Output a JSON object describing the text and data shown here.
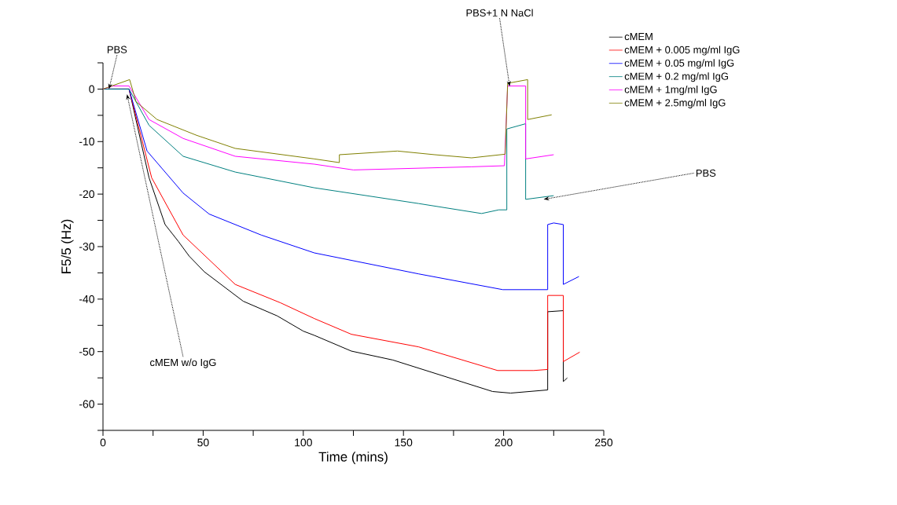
{
  "chart_data": {
    "type": "line",
    "xlabel": "Time (mins)",
    "ylabel": "F5/5 (Hz)",
    "xlim": [
      0,
      250
    ],
    "ylim": [
      -65,
      5
    ],
    "xticks": [
      0,
      {
        "value": 25,
        "label": null
      },
      50,
      {
        "value": 75,
        "label": null
      },
      100,
      {
        "value": 125,
        "label": null
      },
      150,
      {
        "value": 175,
        "label": null
      },
      200,
      {
        "value": 225,
        "label": null
      },
      250
    ],
    "yticks": [
      {
        "value": -65,
        "label": null
      },
      -60,
      {
        "value": -55,
        "label": null
      },
      -50,
      {
        "value": -45,
        "label": null
      },
      -40,
      {
        "value": -35,
        "label": null
      },
      -30,
      {
        "value": -25,
        "label": null
      },
      -20,
      {
        "value": -15,
        "label": null
      },
      -10,
      {
        "value": -5,
        "label": null
      },
      0,
      {
        "value": 5,
        "label": null
      }
    ],
    "legend": "top right",
    "grid": false,
    "marker": "none",
    "line_style": "solid",
    "series": [
      {
        "name": "cMEM",
        "color": "#000000",
        "x": [
          0,
          13,
          23,
          31,
          37.6,
          43,
          50.6,
          70,
          87,
          100,
          105.5,
          124,
          144.7,
          194.5,
          203.5,
          222,
          222,
          229.8,
          229.8,
          231.8
        ],
        "values": [
          0,
          0,
          -16.9,
          -25.8,
          -29,
          -31.8,
          -34.8,
          -40.4,
          -43.2,
          -46.1,
          -46.9,
          -49.9,
          -51.6,
          -57.6,
          -57.9,
          -57.3,
          -42.4,
          -42.2,
          -55.7,
          -55
        ]
      },
      {
        "name": "cMEM + 0.005 mg/ml IgG",
        "color": "#ff0000",
        "x": [
          0,
          13,
          24.3,
          40,
          66,
          88.6,
          105.5,
          124,
          157.6,
          197,
          215,
          222,
          222,
          229.8,
          229.8,
          238
        ],
        "values": [
          0,
          0,
          -16.9,
          -27.8,
          -37.2,
          -40.7,
          -43.7,
          -46.7,
          -49.1,
          -53.6,
          -53.6,
          -53.4,
          -39.3,
          -39.3,
          -51.9,
          -50.1
        ]
      },
      {
        "name": "cMEM + 0.05 mg/ml IgG",
        "color": "#0000ff",
        "x": [
          0,
          13,
          22,
          40,
          53,
          79,
          105.5,
          157.6,
          199.6,
          222,
          222,
          225,
          229.8,
          229.8,
          237.6
        ],
        "values": [
          0,
          0,
          -11.8,
          -19.8,
          -23.8,
          -27.8,
          -31.2,
          -35.2,
          -38.2,
          -38.2,
          -25.8,
          -25.5,
          -25.8,
          -37.2,
          -35.7
        ]
      },
      {
        "name": "cMEM + 0.2 mg/ml IgG",
        "color": "#008080",
        "x": [
          0,
          13,
          23,
          40,
          66,
          105.5,
          157.6,
          189,
          197.6,
          201.6,
          201.6,
          211,
          211,
          225
        ],
        "values": [
          0,
          0,
          -6.9,
          -12.8,
          -15.8,
          -18.8,
          -21.8,
          -23.7,
          -23,
          -23,
          -7.6,
          -6.6,
          -21,
          -20.3
        ]
      },
      {
        "name": "cMEM + 1mg/ml IgG",
        "color": "#ff00ff",
        "x": [
          0,
          5,
          13,
          23,
          40,
          66,
          105.5,
          125,
          184,
          200.4,
          202,
          211,
          211,
          225
        ],
        "values": [
          0,
          0.6,
          0.6,
          -5.8,
          -9.4,
          -12.8,
          -14.3,
          -15.4,
          -14.8,
          -14.6,
          0.6,
          0.6,
          -13.3,
          -12.5
        ]
      },
      {
        "name": "cMEM + 2.5mg/ml IgG",
        "color": "#808000",
        "x": [
          0,
          13.3,
          16.5,
          27,
          46.7,
          66,
          105.5,
          118,
          118,
          147,
          165.6,
          184,
          200.8,
          202,
          212,
          212,
          224
        ],
        "values": [
          0,
          1.8,
          -2.4,
          -5.8,
          -8.8,
          -11.3,
          -13.3,
          -14,
          -12.5,
          -11.8,
          -12.5,
          -13.1,
          -12.4,
          1.1,
          1.8,
          -5.8,
          -4.9
        ]
      }
    ],
    "annotations": [
      {
        "text": "PBS",
        "x": 3,
        "y": 0
      },
      {
        "text": "cMEM w/o IgG",
        "x": 12,
        "y": -1
      },
      {
        "text": "PBS+1 N NaCl",
        "x": 203,
        "y": 0.5
      },
      {
        "text": "PBS",
        "x": 220,
        "y": -21
      }
    ]
  }
}
